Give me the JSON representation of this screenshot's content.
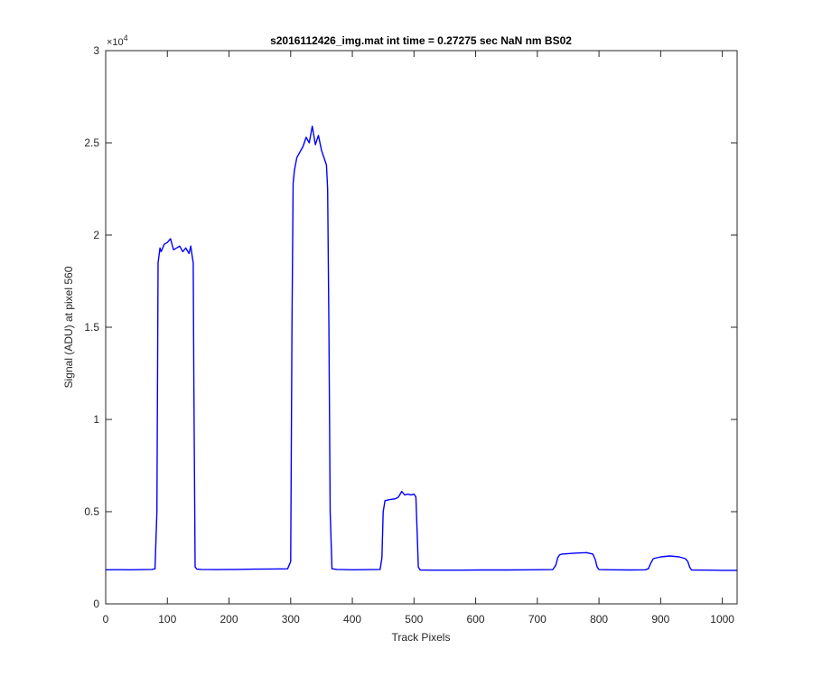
{
  "chart_data": {
    "type": "line",
    "title": "s2016112426_img.mat int time = 0.27275 sec  NaN nm BS02",
    "xlabel": "Track Pixels",
    "ylabel": "Signal (ADU) at pixel 560",
    "xlim": [
      0,
      1024
    ],
    "ylim": [
      0,
      30000
    ],
    "y_exponent_label": "×10",
    "y_exponent_power": "4",
    "grid": false,
    "xticks": [
      0,
      100,
      200,
      300,
      400,
      500,
      600,
      700,
      800,
      900,
      1000
    ],
    "xtick_labels": [
      "0",
      "100",
      "200",
      "300",
      "400",
      "500",
      "600",
      "700",
      "800",
      "900",
      "1000"
    ],
    "yticks": [
      0,
      5000,
      10000,
      15000,
      20000,
      25000,
      30000
    ],
    "ytick_labels": [
      "0",
      "0.5",
      "1",
      "1.5",
      "2",
      "2.5",
      "3"
    ],
    "series": [
      {
        "color": "#0000ff",
        "x": [
          0,
          20,
          40,
          60,
          75,
          80,
          83,
          85,
          88,
          90,
          95,
          100,
          105,
          110,
          115,
          120,
          125,
          130,
          135,
          138,
          140,
          142,
          143,
          145,
          148,
          155,
          180,
          210,
          240,
          270,
          295,
          300,
          302,
          304,
          306,
          310,
          315,
          320,
          325,
          330,
          335,
          340,
          345,
          350,
          355,
          358,
          360,
          362,
          364,
          367,
          375,
          400,
          430,
          445,
          448,
          450,
          453,
          460,
          470,
          475,
          480,
          485,
          490,
          495,
          500,
          503,
          505,
          507,
          510,
          530,
          570,
          610,
          650,
          690,
          725,
          730,
          733,
          736,
          740,
          760,
          780,
          790,
          794,
          797,
          800,
          820,
          850,
          875,
          880,
          884,
          888,
          900,
          915,
          930,
          940,
          944,
          947,
          950,
          980,
          1000,
          1024
        ],
        "y": [
          1850,
          1855,
          1850,
          1860,
          1870,
          1900,
          5000,
          18500,
          19300,
          19100,
          19500,
          19600,
          19800,
          19200,
          19300,
          19400,
          19100,
          19300,
          19000,
          19400,
          18900,
          18500,
          12000,
          2000,
          1880,
          1870,
          1860,
          1870,
          1880,
          1890,
          1900,
          2300,
          15000,
          22800,
          23500,
          24200,
          24500,
          24800,
          25300,
          25000,
          25900,
          24900,
          25400,
          24600,
          24100,
          23800,
          22500,
          15000,
          5000,
          1900,
          1870,
          1850,
          1860,
          1870,
          2500,
          5000,
          5600,
          5650,
          5700,
          5800,
          6100,
          5900,
          5950,
          5900,
          5950,
          5800,
          4000,
          2000,
          1840,
          1830,
          1830,
          1840,
          1840,
          1850,
          1860,
          2100,
          2500,
          2650,
          2700,
          2750,
          2780,
          2700,
          2400,
          2000,
          1860,
          1850,
          1840,
          1850,
          1900,
          2200,
          2450,
          2550,
          2600,
          2550,
          2450,
          2300,
          2000,
          1840,
          1830,
          1820,
          1820
        ]
      }
    ]
  }
}
